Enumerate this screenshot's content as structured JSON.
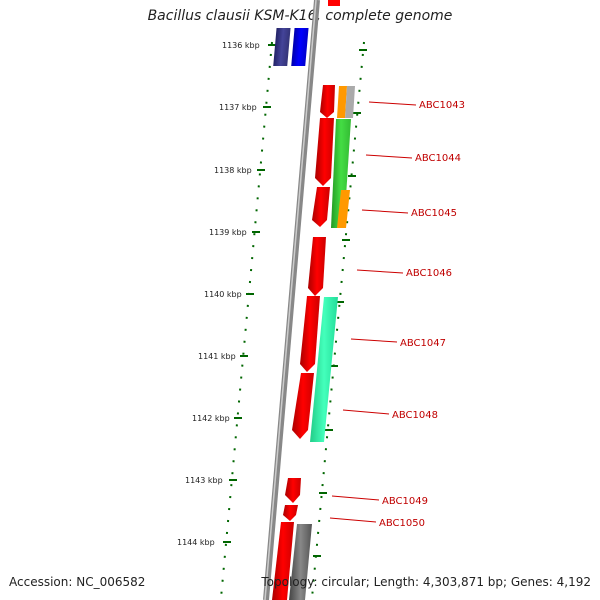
{
  "title": "Bacillus clausii KSM-K16, complete genome",
  "accession_label": "Accession: NC_006582",
  "genome_info": "Topology: circular; Length: 4,303,871 bp; Genes: 4,192",
  "ruler": [
    "1136 kbp",
    "1137 kbp",
    "1138 kbp",
    "1139 kbp",
    "1140 kbp",
    "1141 kbp",
    "1142 kbp",
    "1143 kbp",
    "1144 kbp"
  ],
  "gene_labels": [
    "ABC1043",
    "ABC1044",
    "ABC1045",
    "ABC1046",
    "ABC1047",
    "ABC1048",
    "ABC1049",
    "ABC1050"
  ],
  "colors": {
    "forward_gene": "#ff0000",
    "reverse_gene": "#0000ff",
    "reverse_dark": "#333399",
    "highlight_green": "#33cc33",
    "highlight_teal": "#33ffaa",
    "highlight_orange": "#ff9900",
    "label_red": "#cc0000",
    "tick_green": "#006600",
    "grey_track": "#888888"
  }
}
